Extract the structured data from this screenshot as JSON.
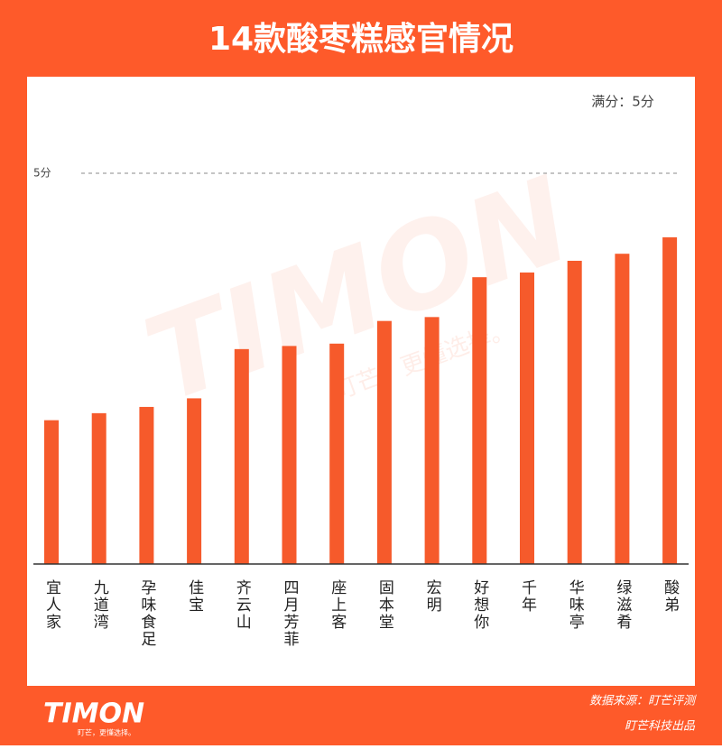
{
  "chart_data": {
    "type": "bar",
    "title": "14款酸枣糕感官情况",
    "annotation": "满分：5分",
    "categories": [
      "宜人家",
      "九道湾",
      "孕味食足",
      "佳宝",
      "齐云山",
      "四月芳菲",
      "座上客",
      "固本堂",
      "宏明",
      "好想你",
      "千年",
      "华味亭",
      "绿滋肴",
      "酸弟"
    ],
    "values": [
      1.84,
      1.93,
      2.01,
      2.12,
      2.75,
      2.79,
      2.82,
      3.11,
      3.16,
      3.67,
      3.73,
      3.88,
      3.97,
      4.18
    ],
    "color": "#f65a2b",
    "ylim": [
      0,
      5
    ],
    "yticks": [
      {
        "value": 5,
        "label": "5分"
      }
    ],
    "grid": true,
    "logo": "TIMON",
    "slogan": "盯芒，更懂选择。",
    "source": "数据来源：盯芒评测",
    "producer": "盯芒科技出品"
  }
}
